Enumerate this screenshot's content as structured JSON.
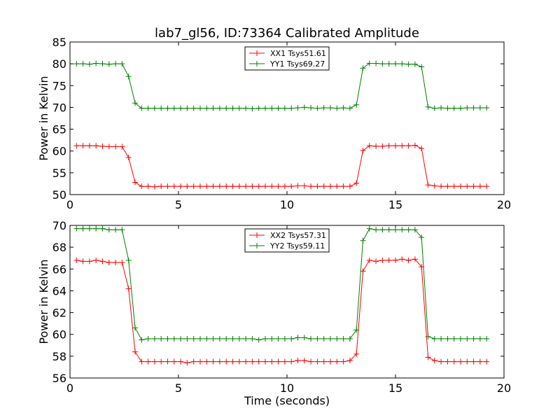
{
  "figure": {
    "title": "lab7_gl56, ID:73364 Calibrated Amplitude",
    "xlabel": "Time (seconds)"
  },
  "colors": {
    "red": "#ff0000",
    "green": "#008000"
  },
  "chart_data": [
    {
      "type": "line",
      "title": "lab7_gl56, ID:73364 Calibrated Amplitude",
      "xlabel": "",
      "ylabel": "Power in Kelvin",
      "xlim": [
        0,
        20
      ],
      "ylim": [
        50,
        85
      ],
      "xticks": [
        0,
        5,
        10,
        15,
        20
      ],
      "yticks": [
        50,
        55,
        60,
        65,
        70,
        75,
        80,
        85
      ],
      "grid": false,
      "legend_position": "top-center",
      "x": [
        0.3,
        0.6,
        0.9,
        1.2,
        1.5,
        1.8,
        2.1,
        2.4,
        2.7,
        3.0,
        3.3,
        3.6,
        3.9,
        4.2,
        4.5,
        4.8,
        5.1,
        5.4,
        5.7,
        6.0,
        6.3,
        6.6,
        6.9,
        7.2,
        7.5,
        7.8,
        8.1,
        8.4,
        8.7,
        9.0,
        9.3,
        9.6,
        9.9,
        10.2,
        10.5,
        10.8,
        11.1,
        11.4,
        11.7,
        12.0,
        12.3,
        12.6,
        12.9,
        13.2,
        13.5,
        13.8,
        14.1,
        14.4,
        14.7,
        15.0,
        15.3,
        15.6,
        15.9,
        16.2,
        16.5,
        16.8,
        17.1,
        17.4,
        17.7,
        18.0,
        18.3,
        18.6,
        18.9,
        19.2
      ],
      "series": [
        {
          "name": "XX1 Tsys51.61",
          "color": "#ff0000",
          "values": [
            61.2,
            61.2,
            61.2,
            61.2,
            61.1,
            61.0,
            61.0,
            61.0,
            58.5,
            52.8,
            51.9,
            51.9,
            51.8,
            51.9,
            51.9,
            51.9,
            51.9,
            51.9,
            51.9,
            51.9,
            51.9,
            51.9,
            51.9,
            51.9,
            51.9,
            51.9,
            51.9,
            51.9,
            51.9,
            51.9,
            51.9,
            51.9,
            51.9,
            51.9,
            52.0,
            52.0,
            51.9,
            51.9,
            51.9,
            51.9,
            51.9,
            51.9,
            51.9,
            52.6,
            60.1,
            61.2,
            61.1,
            61.1,
            61.2,
            61.2,
            61.2,
            61.2,
            61.3,
            60.6,
            52.2,
            52.0,
            51.9,
            51.9,
            51.9,
            51.9,
            51.9,
            51.9,
            51.9,
            51.9
          ]
        },
        {
          "name": "YY1 Tsys69.27",
          "color": "#008000",
          "values": [
            80.0,
            80.0,
            79.9,
            80.1,
            80.0,
            79.9,
            80.0,
            80.0,
            77.1,
            71.0,
            69.8,
            69.8,
            69.8,
            69.8,
            69.8,
            69.8,
            69.8,
            69.8,
            69.8,
            69.8,
            69.8,
            69.8,
            69.8,
            69.8,
            69.8,
            69.8,
            69.8,
            69.7,
            69.8,
            69.8,
            69.8,
            69.8,
            69.8,
            69.8,
            69.9,
            70.0,
            69.9,
            69.8,
            69.9,
            69.9,
            69.8,
            69.9,
            69.8,
            70.6,
            79.0,
            80.1,
            80.1,
            80.0,
            80.0,
            80.0,
            80.0,
            79.9,
            79.9,
            79.3,
            70.1,
            69.8,
            69.9,
            69.8,
            69.8,
            69.8,
            69.9,
            69.9,
            69.9,
            69.9
          ]
        }
      ]
    },
    {
      "type": "line",
      "title": "",
      "xlabel": "Time (seconds)",
      "ylabel": "Power in Kelvin",
      "xlim": [
        0,
        20
      ],
      "ylim": [
        56,
        70
      ],
      "xticks": [
        0,
        5,
        10,
        15,
        20
      ],
      "yticks": [
        56,
        58,
        60,
        62,
        64,
        66,
        68,
        70
      ],
      "grid": false,
      "legend_position": "top-center",
      "x": [
        0.3,
        0.6,
        0.9,
        1.2,
        1.5,
        1.8,
        2.1,
        2.4,
        2.7,
        3.0,
        3.3,
        3.6,
        3.9,
        4.2,
        4.5,
        4.8,
        5.1,
        5.4,
        5.7,
        6.0,
        6.3,
        6.6,
        6.9,
        7.2,
        7.5,
        7.8,
        8.1,
        8.4,
        8.7,
        9.0,
        9.3,
        9.6,
        9.9,
        10.2,
        10.5,
        10.8,
        11.1,
        11.4,
        11.7,
        12.0,
        12.3,
        12.6,
        12.9,
        13.2,
        13.5,
        13.8,
        14.1,
        14.4,
        14.7,
        15.0,
        15.3,
        15.6,
        15.9,
        16.2,
        16.5,
        16.8,
        17.1,
        17.4,
        17.7,
        18.0,
        18.3,
        18.6,
        18.9,
        19.2
      ],
      "series": [
        {
          "name": "XX2 Tsys57.31",
          "color": "#ff0000",
          "values": [
            66.8,
            66.7,
            66.7,
            66.8,
            66.7,
            66.6,
            66.6,
            66.6,
            64.2,
            58.4,
            57.5,
            57.5,
            57.5,
            57.5,
            57.5,
            57.5,
            57.5,
            57.4,
            57.5,
            57.5,
            57.5,
            57.5,
            57.5,
            57.5,
            57.5,
            57.5,
            57.5,
            57.5,
            57.5,
            57.5,
            57.5,
            57.5,
            57.5,
            57.5,
            57.6,
            57.6,
            57.5,
            57.5,
            57.5,
            57.5,
            57.5,
            57.5,
            57.6,
            58.2,
            65.8,
            66.8,
            66.7,
            66.8,
            66.8,
            66.8,
            66.9,
            66.8,
            66.9,
            66.2,
            57.9,
            57.6,
            57.5,
            57.5,
            57.5,
            57.5,
            57.5,
            57.5,
            57.5,
            57.5
          ]
        },
        {
          "name": "YY2 Tsys59.11",
          "color": "#008000",
          "values": [
            69.7,
            69.7,
            69.7,
            69.7,
            69.7,
            69.6,
            69.6,
            69.6,
            66.8,
            60.6,
            59.5,
            59.6,
            59.6,
            59.6,
            59.6,
            59.6,
            59.6,
            59.6,
            59.6,
            59.6,
            59.6,
            59.6,
            59.6,
            59.6,
            59.6,
            59.6,
            59.6,
            59.6,
            59.5,
            59.6,
            59.6,
            59.6,
            59.6,
            59.6,
            59.7,
            59.7,
            59.6,
            59.6,
            59.6,
            59.6,
            59.6,
            59.6,
            59.6,
            60.4,
            68.6,
            69.7,
            69.6,
            69.6,
            69.6,
            69.6,
            69.6,
            69.6,
            69.6,
            68.9,
            59.8,
            59.6,
            59.6,
            59.6,
            59.6,
            59.6,
            59.6,
            59.6,
            59.6,
            59.6
          ]
        }
      ]
    }
  ]
}
